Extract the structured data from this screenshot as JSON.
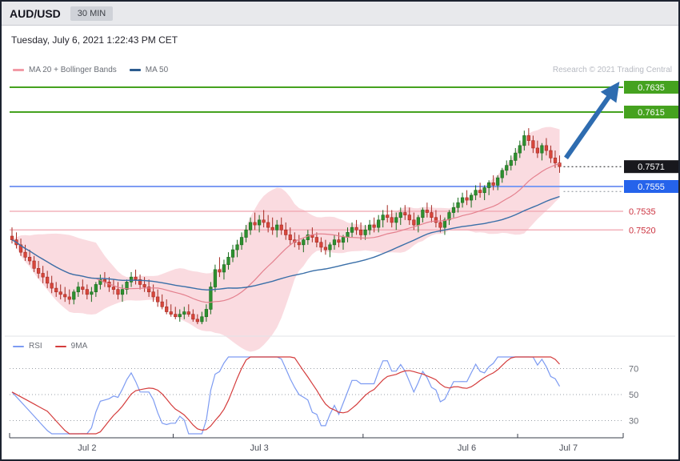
{
  "header": {
    "pair": "AUD/USD",
    "timeframe": "30 MIN",
    "datetime": "Tuesday, July 6, 2021 1:22:43 PM CET"
  },
  "legend": {
    "ma20": "MA 20 + Bollinger Bands",
    "ma50": "MA 50"
  },
  "rsi_legend": {
    "rsi": "RSI",
    "ma9": "9MA"
  },
  "credit": "Research © 2021 Trading Central",
  "colors": {
    "green": "#45a21f",
    "blue_line": "#7e9cf3",
    "blue_label": "#2563eb",
    "pink": "#f0a3ae",
    "red_text": "#cc3340",
    "last_label": "#18181d",
    "candle_up": "#2e9130",
    "candle_up_border": "#1b6b1e",
    "candle_down": "#d8463b",
    "candle_down_border": "#a52a22",
    "ma20": "#e4808e",
    "ma50": "#3a6fa8",
    "bollinger_fill": "#f5b8c2",
    "arrow": "#2e6cb0",
    "rsi": "#7d9bf2",
    "rsi_ma9": "#d43c3c",
    "axis": "#3a3f4a",
    "grid": "#9aa0a8"
  },
  "chart_data": {
    "type": "candlestick",
    "pair": "AUD/USD",
    "interval": "30 MIN",
    "indicators": [
      "MA 20",
      "Bollinger Bands (20,2)",
      "MA 50",
      "RSI (14)",
      "RSI 9MA"
    ],
    "current_price": 0.7571,
    "levels": [
      {
        "price": 0.7635,
        "label": "0.7635",
        "type": "resistance",
        "style": "green"
      },
      {
        "price": 0.7615,
        "label": "0.7615",
        "type": "resistance",
        "style": "green"
      },
      {
        "price": 0.7571,
        "label": "0.7571",
        "type": "last",
        "style": "last"
      },
      {
        "price": 0.7555,
        "label": "0.7555",
        "type": "support",
        "style": "blue"
      },
      {
        "price": 0.7535,
        "label": "0.7535",
        "type": "support",
        "style": "pink"
      },
      {
        "price": 0.752,
        "label": "0.7520",
        "type": "support",
        "style": "pink"
      }
    ],
    "arrow": {
      "from_price": 0.7578,
      "to_price": 0.763,
      "direction": "up",
      "target_label": "0.7635"
    },
    "x_ticks": [
      {
        "label": "Jul 2",
        "index": 17
      },
      {
        "label": "Jul 3",
        "index": 56
      },
      {
        "label": "Jul 6",
        "index": 103
      },
      {
        "label": "Jul 7",
        "index": 126
      }
    ],
    "rsi_gridlines": [
      70,
      50,
      30
    ],
    "candles": [
      [
        0.7515,
        0.7522,
        0.7509,
        0.7512
      ],
      [
        0.7512,
        0.7518,
        0.7505,
        0.7508
      ],
      [
        0.7508,
        0.7513,
        0.7499,
        0.7502
      ],
      [
        0.7502,
        0.7508,
        0.7495,
        0.7498
      ],
      [
        0.7498,
        0.7504,
        0.7492,
        0.7495
      ],
      [
        0.7495,
        0.7499,
        0.7486,
        0.7489
      ],
      [
        0.7489,
        0.7495,
        0.7481,
        0.7485
      ],
      [
        0.7485,
        0.7491,
        0.7477,
        0.7482
      ],
      [
        0.7482,
        0.7487,
        0.7473,
        0.7477
      ],
      [
        0.7477,
        0.7483,
        0.7469,
        0.7473
      ],
      [
        0.7473,
        0.7478,
        0.7466,
        0.747
      ],
      [
        0.747,
        0.7476,
        0.7464,
        0.7468
      ],
      [
        0.7468,
        0.7474,
        0.7462,
        0.7466
      ],
      [
        0.7466,
        0.7472,
        0.746,
        0.7464
      ],
      [
        0.7464,
        0.7472,
        0.746,
        0.747
      ],
      [
        0.747,
        0.7478,
        0.7466,
        0.7474
      ],
      [
        0.7474,
        0.748,
        0.7468,
        0.7472
      ],
      [
        0.7472,
        0.7476,
        0.7464,
        0.7468
      ],
      [
        0.7468,
        0.7474,
        0.7462,
        0.747
      ],
      [
        0.747,
        0.7478,
        0.7466,
        0.7476
      ],
      [
        0.7476,
        0.7484,
        0.7472,
        0.748
      ],
      [
        0.748,
        0.7486,
        0.7474,
        0.7478
      ],
      [
        0.7478,
        0.7482,
        0.747,
        0.7474
      ],
      [
        0.7474,
        0.748,
        0.7468,
        0.7472
      ],
      [
        0.7472,
        0.7478,
        0.7464,
        0.7468
      ],
      [
        0.7468,
        0.7476,
        0.7462,
        0.7472
      ],
      [
        0.7472,
        0.748,
        0.7468,
        0.7478
      ],
      [
        0.7478,
        0.7486,
        0.7474,
        0.7482
      ],
      [
        0.7482,
        0.7488,
        0.7476,
        0.748
      ],
      [
        0.748,
        0.7484,
        0.7472,
        0.7476
      ],
      [
        0.7476,
        0.7482,
        0.747,
        0.7474
      ],
      [
        0.7474,
        0.748,
        0.7466,
        0.747
      ],
      [
        0.747,
        0.7476,
        0.7462,
        0.7466
      ],
      [
        0.7466,
        0.7472,
        0.7458,
        0.7462
      ],
      [
        0.7462,
        0.7468,
        0.7456,
        0.7458
      ],
      [
        0.7458,
        0.7464,
        0.7452,
        0.7454
      ],
      [
        0.7454,
        0.746,
        0.745,
        0.7452
      ],
      [
        0.7452,
        0.7458,
        0.7448,
        0.745
      ],
      [
        0.745,
        0.7456,
        0.7446,
        0.7452
      ],
      [
        0.7452,
        0.7458,
        0.7448,
        0.7454
      ],
      [
        0.7454,
        0.746,
        0.745,
        0.7452
      ],
      [
        0.7452,
        0.7456,
        0.7446,
        0.7448
      ],
      [
        0.7448,
        0.7452,
        0.7444,
        0.7446
      ],
      [
        0.7446,
        0.7454,
        0.7444,
        0.745
      ],
      [
        0.745,
        0.746,
        0.7446,
        0.7456
      ],
      [
        0.7456,
        0.7478,
        0.7452,
        0.7474
      ],
      [
        0.7474,
        0.7492,
        0.747,
        0.7488
      ],
      [
        0.7488,
        0.7498,
        0.7482,
        0.7486
      ],
      [
        0.7486,
        0.7496,
        0.748,
        0.7492
      ],
      [
        0.7492,
        0.7502,
        0.7488,
        0.7498
      ],
      [
        0.7498,
        0.7508,
        0.7494,
        0.7504
      ],
      [
        0.7504,
        0.7512,
        0.7498,
        0.7508
      ],
      [
        0.7508,
        0.7518,
        0.7504,
        0.7514
      ],
      [
        0.7514,
        0.7524,
        0.751,
        0.752
      ],
      [
        0.752,
        0.753,
        0.7516,
        0.7526
      ],
      [
        0.7526,
        0.7534,
        0.752,
        0.7524
      ],
      [
        0.7524,
        0.7532,
        0.7518,
        0.7528
      ],
      [
        0.7528,
        0.7536,
        0.7522,
        0.7526
      ],
      [
        0.7526,
        0.7532,
        0.7518,
        0.7522
      ],
      [
        0.7522,
        0.753,
        0.7516,
        0.752
      ],
      [
        0.752,
        0.7528,
        0.7514,
        0.7524
      ],
      [
        0.7524,
        0.753,
        0.7516,
        0.752
      ],
      [
        0.752,
        0.7526,
        0.7512,
        0.7516
      ],
      [
        0.7516,
        0.7522,
        0.7508,
        0.7512
      ],
      [
        0.7512,
        0.7518,
        0.7506,
        0.751
      ],
      [
        0.751,
        0.7516,
        0.7504,
        0.7508
      ],
      [
        0.7508,
        0.7514,
        0.7502,
        0.7512
      ],
      [
        0.7512,
        0.752,
        0.7508,
        0.7516
      ],
      [
        0.7516,
        0.7522,
        0.751,
        0.7514
      ],
      [
        0.7514,
        0.7518,
        0.7506,
        0.751
      ],
      [
        0.751,
        0.7514,
        0.7502,
        0.7506
      ],
      [
        0.7506,
        0.7512,
        0.75,
        0.7504
      ],
      [
        0.7504,
        0.751,
        0.7498,
        0.7508
      ],
      [
        0.7508,
        0.7516,
        0.7504,
        0.7512
      ],
      [
        0.7512,
        0.7518,
        0.7506,
        0.751
      ],
      [
        0.751,
        0.7516,
        0.7504,
        0.7514
      ],
      [
        0.7514,
        0.7522,
        0.751,
        0.7518
      ],
      [
        0.7518,
        0.7526,
        0.7514,
        0.7522
      ],
      [
        0.7522,
        0.7528,
        0.7516,
        0.752
      ],
      [
        0.752,
        0.7526,
        0.7512,
        0.7516
      ],
      [
        0.7516,
        0.7524,
        0.7512,
        0.752
      ],
      [
        0.752,
        0.7528,
        0.7516,
        0.7524
      ],
      [
        0.7524,
        0.753,
        0.7518,
        0.7522
      ],
      [
        0.7522,
        0.7532,
        0.7518,
        0.7528
      ],
      [
        0.7528,
        0.7536,
        0.7522,
        0.7532
      ],
      [
        0.7532,
        0.754,
        0.7526,
        0.753
      ],
      [
        0.753,
        0.7536,
        0.7522,
        0.7526
      ],
      [
        0.7526,
        0.7534,
        0.752,
        0.753
      ],
      [
        0.753,
        0.7538,
        0.7524,
        0.7534
      ],
      [
        0.7534,
        0.754,
        0.7528,
        0.7532
      ],
      [
        0.7532,
        0.7538,
        0.7524,
        0.7528
      ],
      [
        0.7528,
        0.7534,
        0.752,
        0.7524
      ],
      [
        0.7524,
        0.7532,
        0.7518,
        0.753
      ],
      [
        0.753,
        0.7538,
        0.7526,
        0.7536
      ],
      [
        0.7536,
        0.7542,
        0.753,
        0.7534
      ],
      [
        0.7534,
        0.754,
        0.7526,
        0.753
      ],
      [
        0.753,
        0.7536,
        0.7522,
        0.7526
      ],
      [
        0.7526,
        0.7532,
        0.7518,
        0.7522
      ],
      [
        0.7522,
        0.753,
        0.7516,
        0.7528
      ],
      [
        0.7528,
        0.7536,
        0.7524,
        0.7534
      ],
      [
        0.7534,
        0.7542,
        0.753,
        0.7538
      ],
      [
        0.7538,
        0.7546,
        0.7534,
        0.7542
      ],
      [
        0.7542,
        0.755,
        0.7538,
        0.7546
      ],
      [
        0.7546,
        0.7552,
        0.754,
        0.7544
      ],
      [
        0.7544,
        0.755,
        0.7538,
        0.7548
      ],
      [
        0.7548,
        0.7556,
        0.7544,
        0.7552
      ],
      [
        0.7552,
        0.7558,
        0.7546,
        0.755
      ],
      [
        0.755,
        0.7556,
        0.7544,
        0.7554
      ],
      [
        0.7554,
        0.756,
        0.7548,
        0.7558
      ],
      [
        0.7558,
        0.7564,
        0.7552,
        0.7556
      ],
      [
        0.7556,
        0.7564,
        0.7552,
        0.7562
      ],
      [
        0.7562,
        0.757,
        0.7558,
        0.7568
      ],
      [
        0.7568,
        0.7576,
        0.7564,
        0.7572
      ],
      [
        0.7572,
        0.758,
        0.7568,
        0.7576
      ],
      [
        0.7576,
        0.7586,
        0.7572,
        0.7582
      ],
      [
        0.7582,
        0.7592,
        0.7578,
        0.7588
      ],
      [
        0.7588,
        0.76,
        0.7584,
        0.7596
      ],
      [
        0.7596,
        0.7602,
        0.7588,
        0.7592
      ],
      [
        0.7592,
        0.7596,
        0.7582,
        0.7586
      ],
      [
        0.7586,
        0.7592,
        0.7578,
        0.7582
      ],
      [
        0.7582,
        0.759,
        0.7576,
        0.7588
      ],
      [
        0.7588,
        0.7594,
        0.758,
        0.7584
      ],
      [
        0.7584,
        0.7588,
        0.7574,
        0.7578
      ],
      [
        0.7578,
        0.7584,
        0.757,
        0.7574
      ],
      [
        0.7574,
        0.758,
        0.7566,
        0.7571
      ]
    ]
  }
}
